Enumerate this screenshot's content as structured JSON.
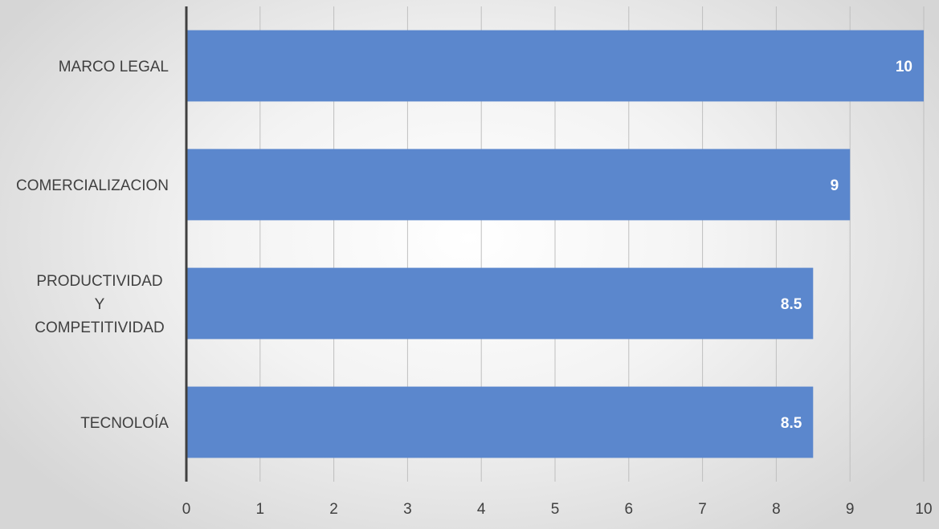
{
  "chart_data": {
    "type": "bar",
    "orientation": "horizontal",
    "categories": [
      "MARCO LEGAL",
      "COMERCIALIZACION",
      "PRODUCTIVIDAD Y COMPETITIVIDAD",
      "TECNOLOÍA"
    ],
    "category_label_lines": [
      [
        "MARCO LEGAL"
      ],
      [
        "COMERCIALIZACION"
      ],
      [
        "PRODUCTIVIDAD",
        "Y",
        "COMPETITIVIDAD"
      ],
      [
        "TECNOLOÍA"
      ]
    ],
    "values": [
      10,
      9,
      8.5,
      8.5
    ],
    "data_labels": [
      "10",
      "9",
      "8.5",
      "8.5"
    ],
    "x_ticks": [
      "0",
      "1",
      "2",
      "3",
      "4",
      "5",
      "6",
      "7",
      "8",
      "9",
      "10"
    ],
    "xlim": [
      0,
      10
    ],
    "title": "",
    "xlabel": "",
    "ylabel": "",
    "grid": true,
    "legend": "none",
    "colors": {
      "bar": "#5b87cd",
      "gridline": "#bfbfbf",
      "axis": "#404040",
      "data_label": "#ffffff"
    }
  }
}
